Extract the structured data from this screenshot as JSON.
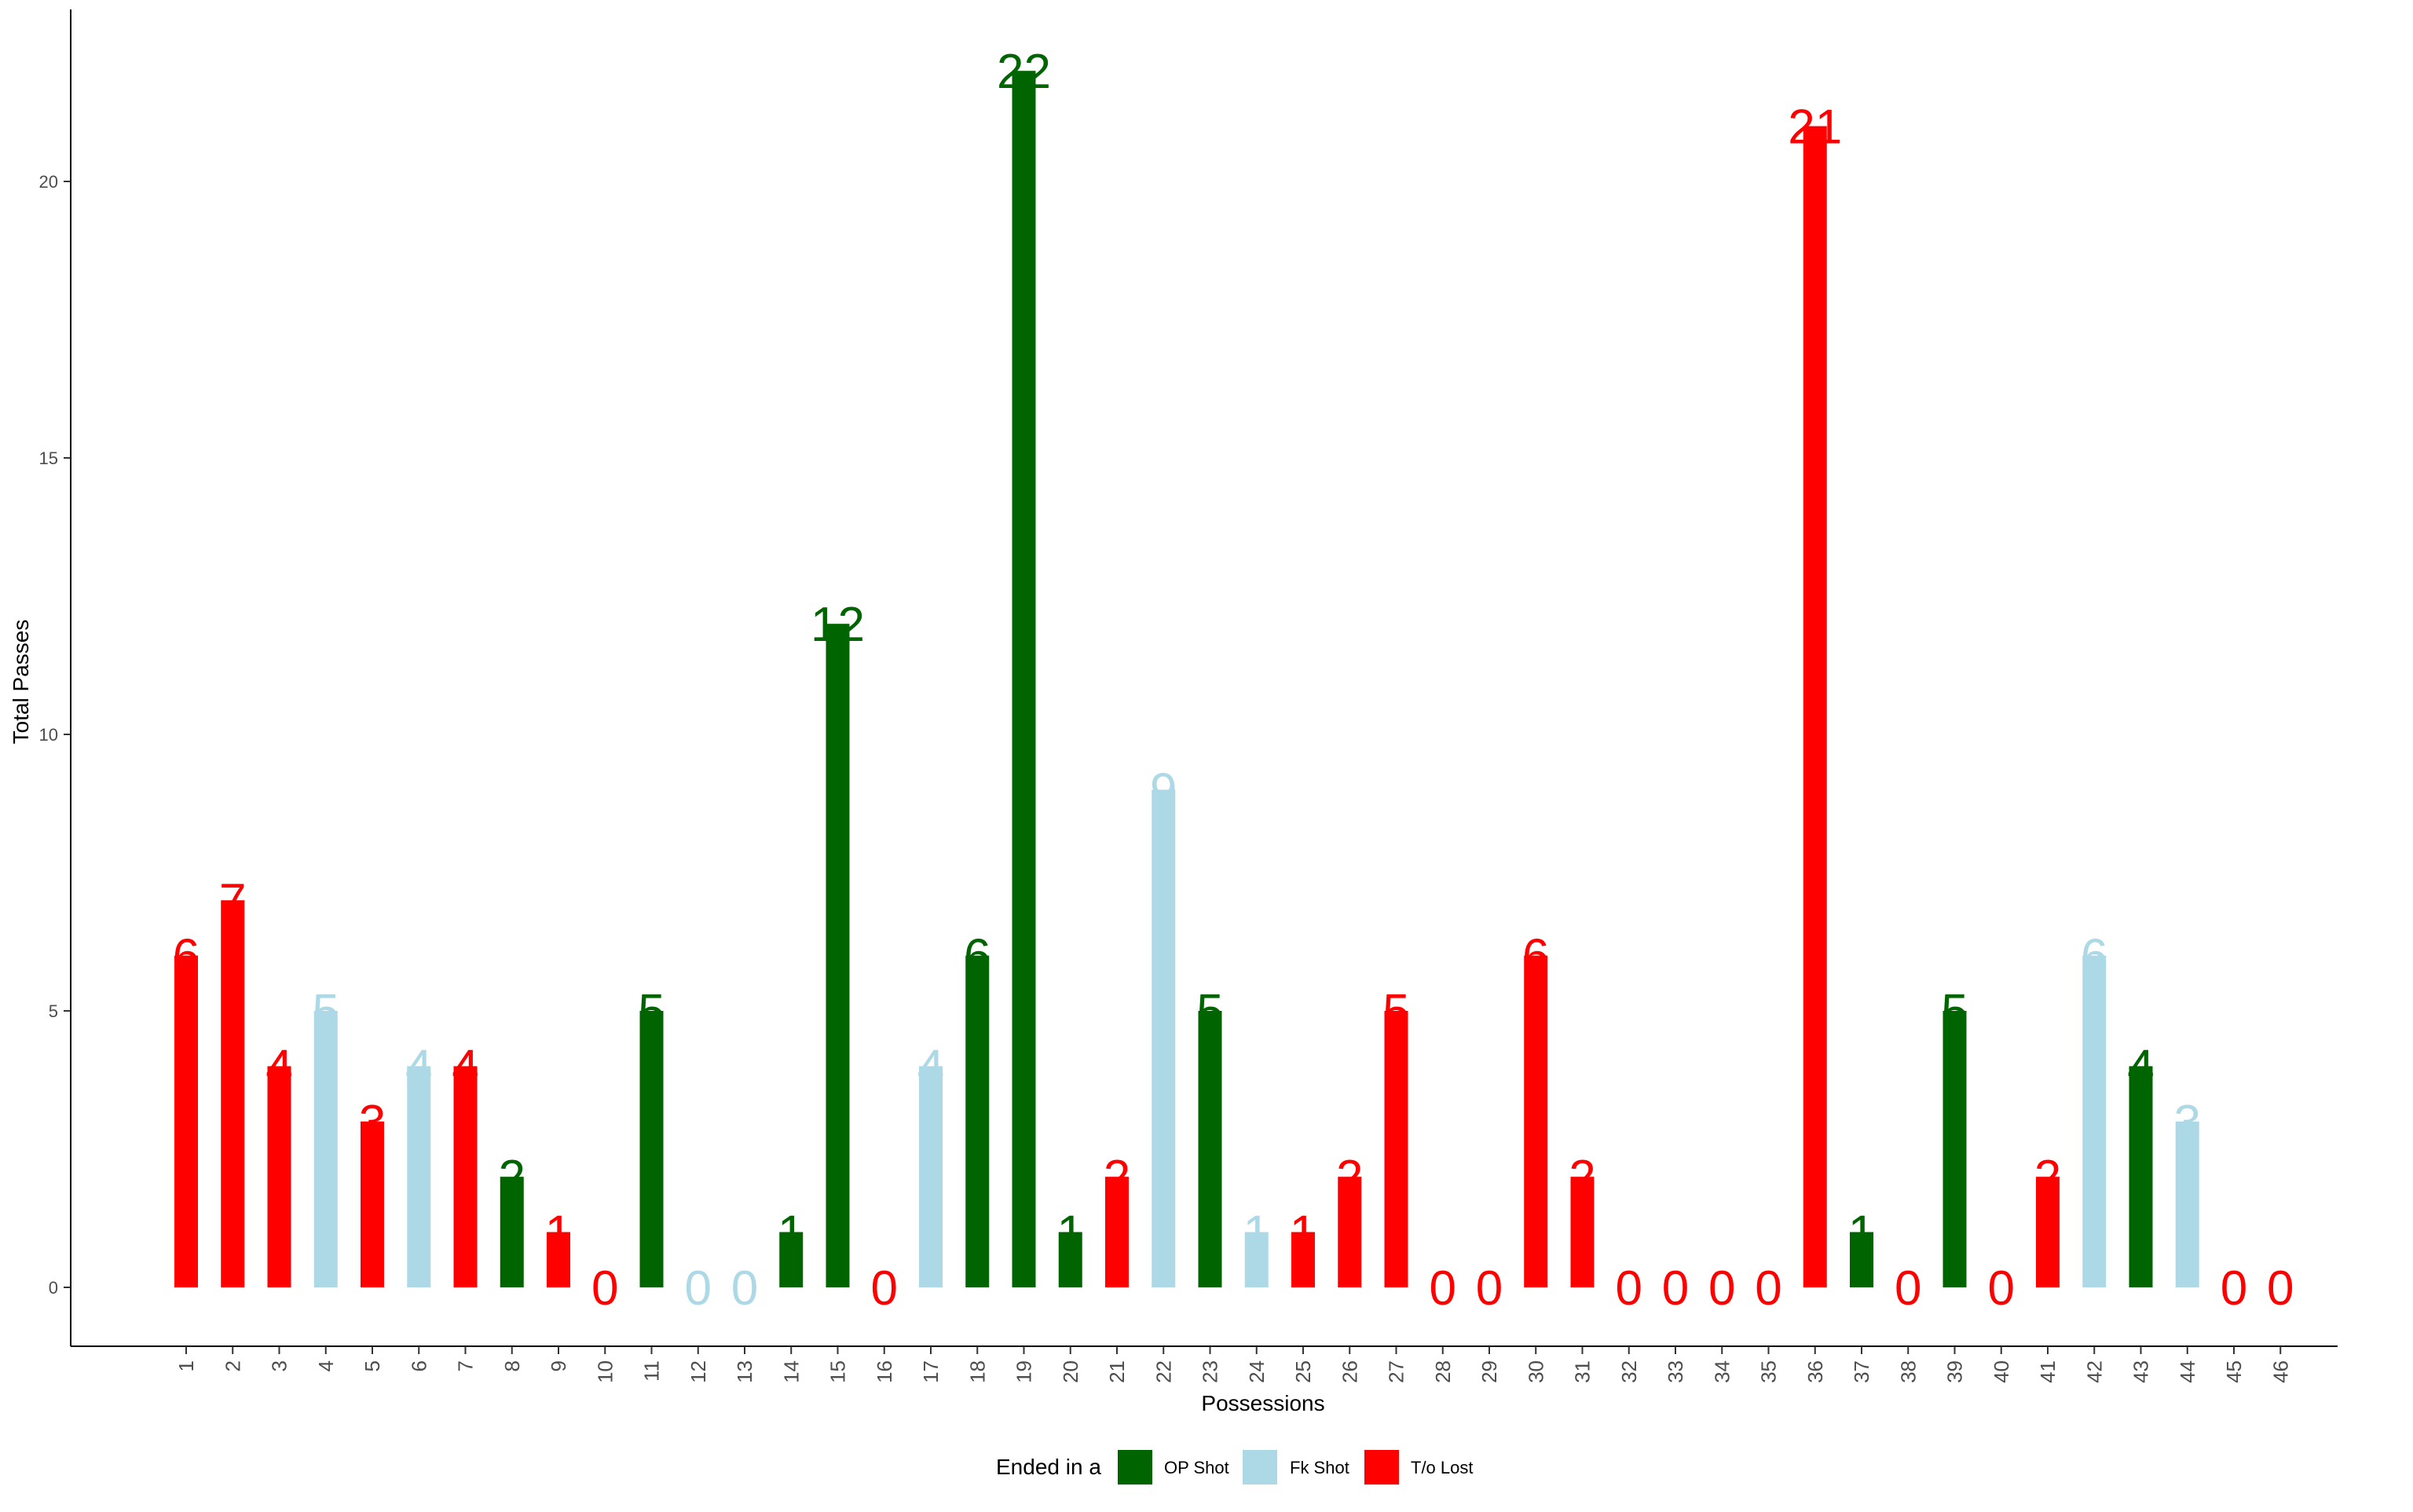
{
  "chart_data": {
    "type": "bar",
    "xlabel": "Possessions",
    "ylabel": "Total Passes",
    "ylim": [
      -1.1,
      23
    ],
    "yticks": [
      0,
      5,
      10,
      15,
      20
    ],
    "categories": [
      "1",
      "2",
      "3",
      "4",
      "5",
      "6",
      "7",
      "8",
      "9",
      "10",
      "11",
      "12",
      "13",
      "14",
      "15",
      "16",
      "17",
      "18",
      "19",
      "20",
      "21",
      "22",
      "23",
      "24",
      "25",
      "26",
      "27",
      "28",
      "29",
      "30",
      "31",
      "32",
      "33",
      "34",
      "35",
      "36",
      "37",
      "38",
      "39",
      "40",
      "41",
      "42",
      "43",
      "44",
      "45",
      "46"
    ],
    "values": [
      6,
      7,
      4,
      5,
      3,
      4,
      4,
      2,
      1,
      0,
      5,
      0,
      0,
      1,
      12,
      0,
      4,
      6,
      22,
      1,
      2,
      9,
      5,
      1,
      1,
      2,
      5,
      0,
      0,
      6,
      2,
      0,
      0,
      0,
      0,
      21,
      1,
      0,
      5,
      0,
      2,
      6,
      4,
      3,
      0,
      0
    ],
    "outcome": [
      "T/o Lost",
      "T/o Lost",
      "T/o Lost",
      "Fk Shot",
      "T/o Lost",
      "Fk Shot",
      "T/o Lost",
      "OP Shot",
      "T/o Lost",
      "T/o Lost",
      "OP Shot",
      "Fk Shot",
      "Fk Shot",
      "OP Shot",
      "OP Shot",
      "T/o Lost",
      "Fk Shot",
      "OP Shot",
      "OP Shot",
      "OP Shot",
      "T/o Lost",
      "Fk Shot",
      "OP Shot",
      "Fk Shot",
      "T/o Lost",
      "T/o Lost",
      "T/o Lost",
      "T/o Lost",
      "T/o Lost",
      "T/o Lost",
      "T/o Lost",
      "T/o Lost",
      "T/o Lost",
      "T/o Lost",
      "T/o Lost",
      "T/o Lost",
      "OP Shot",
      "T/o Lost",
      "OP Shot",
      "T/o Lost",
      "T/o Lost",
      "Fk Shot",
      "OP Shot",
      "Fk Shot",
      "T/o Lost",
      "T/o Lost"
    ],
    "legend": {
      "title": "Ended in a",
      "position": "bottom",
      "items": [
        {
          "label": "OP Shot",
          "color": "#006400"
        },
        {
          "label": "Fk Shot",
          "color": "#ADD8E6"
        },
        {
          "label": "T/o Lost",
          "color": "#FF0000"
        }
      ]
    },
    "grid": false
  }
}
